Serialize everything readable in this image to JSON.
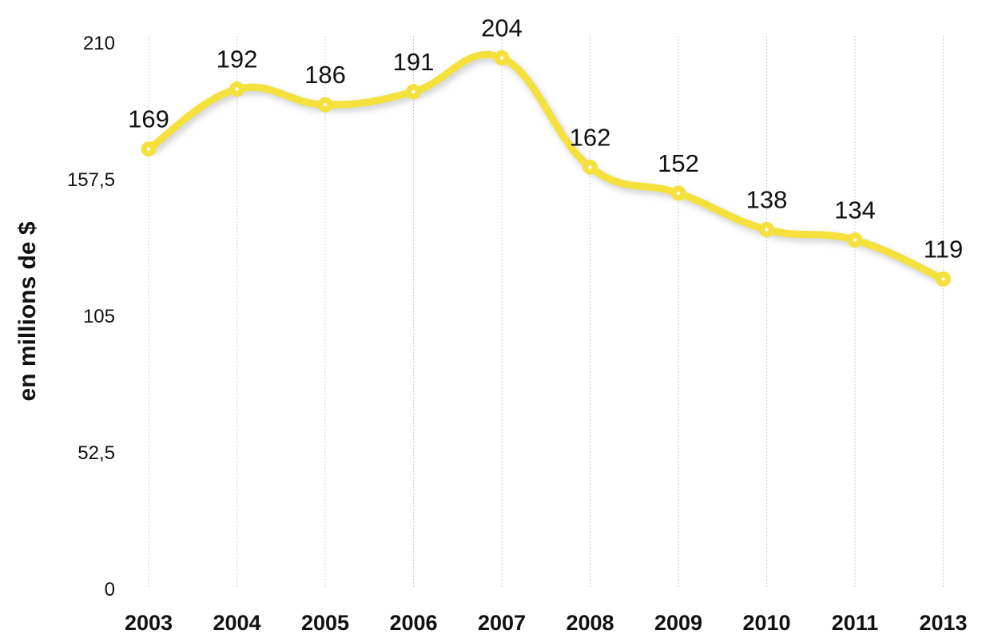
{
  "chart_data": {
    "type": "line",
    "title": "",
    "xlabel": "",
    "ylabel": "en millions de $",
    "categories": [
      "2003",
      "2004",
      "2005",
      "2006",
      "2007",
      "2008",
      "2009",
      "2010",
      "2011",
      "2013"
    ],
    "series": [
      {
        "values": [
          169,
          192,
          186,
          191,
          204,
          162,
          152,
          138,
          134,
          119
        ],
        "color": "#f4e13c"
      }
    ],
    "ylim": [
      0,
      210
    ],
    "yticks": [
      "0",
      "52,5",
      "105",
      "157,5",
      "210"
    ],
    "data_labels": [
      "169",
      "192",
      "186",
      "191",
      "204",
      "162",
      "152",
      "138",
      "134",
      "119"
    ],
    "grid": "vertical dashed",
    "legend": "none",
    "line_style": "smooth"
  }
}
